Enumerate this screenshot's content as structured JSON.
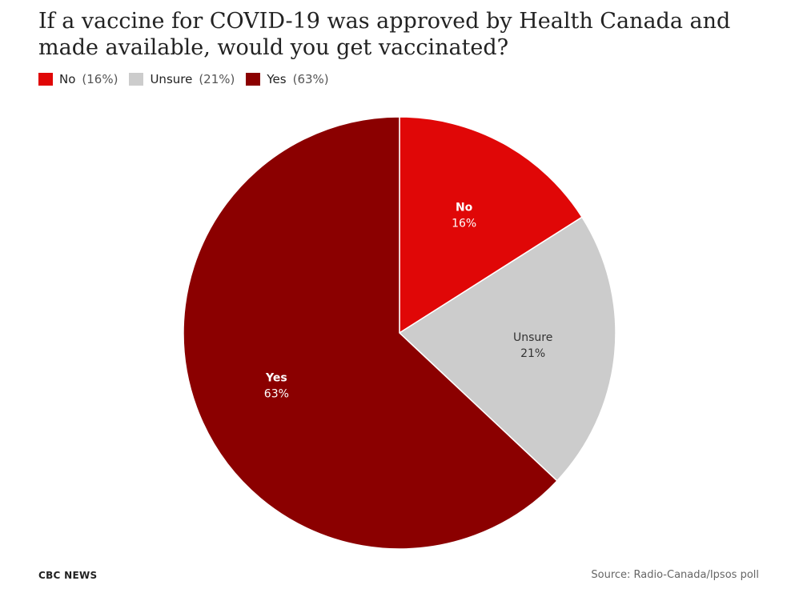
{
  "title": "If a vaccine for COVID-19 was approved by Health Canada and made available, would you get vaccinated?",
  "legend": [
    {
      "label": "No",
      "pct": "(16%)",
      "color": "#e00707"
    },
    {
      "label": "Unsure",
      "pct": "(21%)",
      "color": "#cccccc"
    },
    {
      "label": "Yes",
      "pct": "(63%)",
      "color": "#8b0000"
    }
  ],
  "chart_data": {
    "type": "pie",
    "categories": [
      "No",
      "Unsure",
      "Yes"
    ],
    "values": [
      16,
      21,
      63
    ],
    "labels": [
      "16%",
      "21%",
      "63%"
    ],
    "colors": [
      "#e00707",
      "#cccccc",
      "#8b0000"
    ],
    "label_colors": [
      "#ffffff",
      "#333333",
      "#ffffff"
    ],
    "title": "If a vaccine for COVID-19 was approved by Health Canada and made available, would you get vaccinated?"
  },
  "footer": {
    "brand": "CBC NEWS",
    "source": "Source: Radio-Canada/Ipsos poll"
  }
}
